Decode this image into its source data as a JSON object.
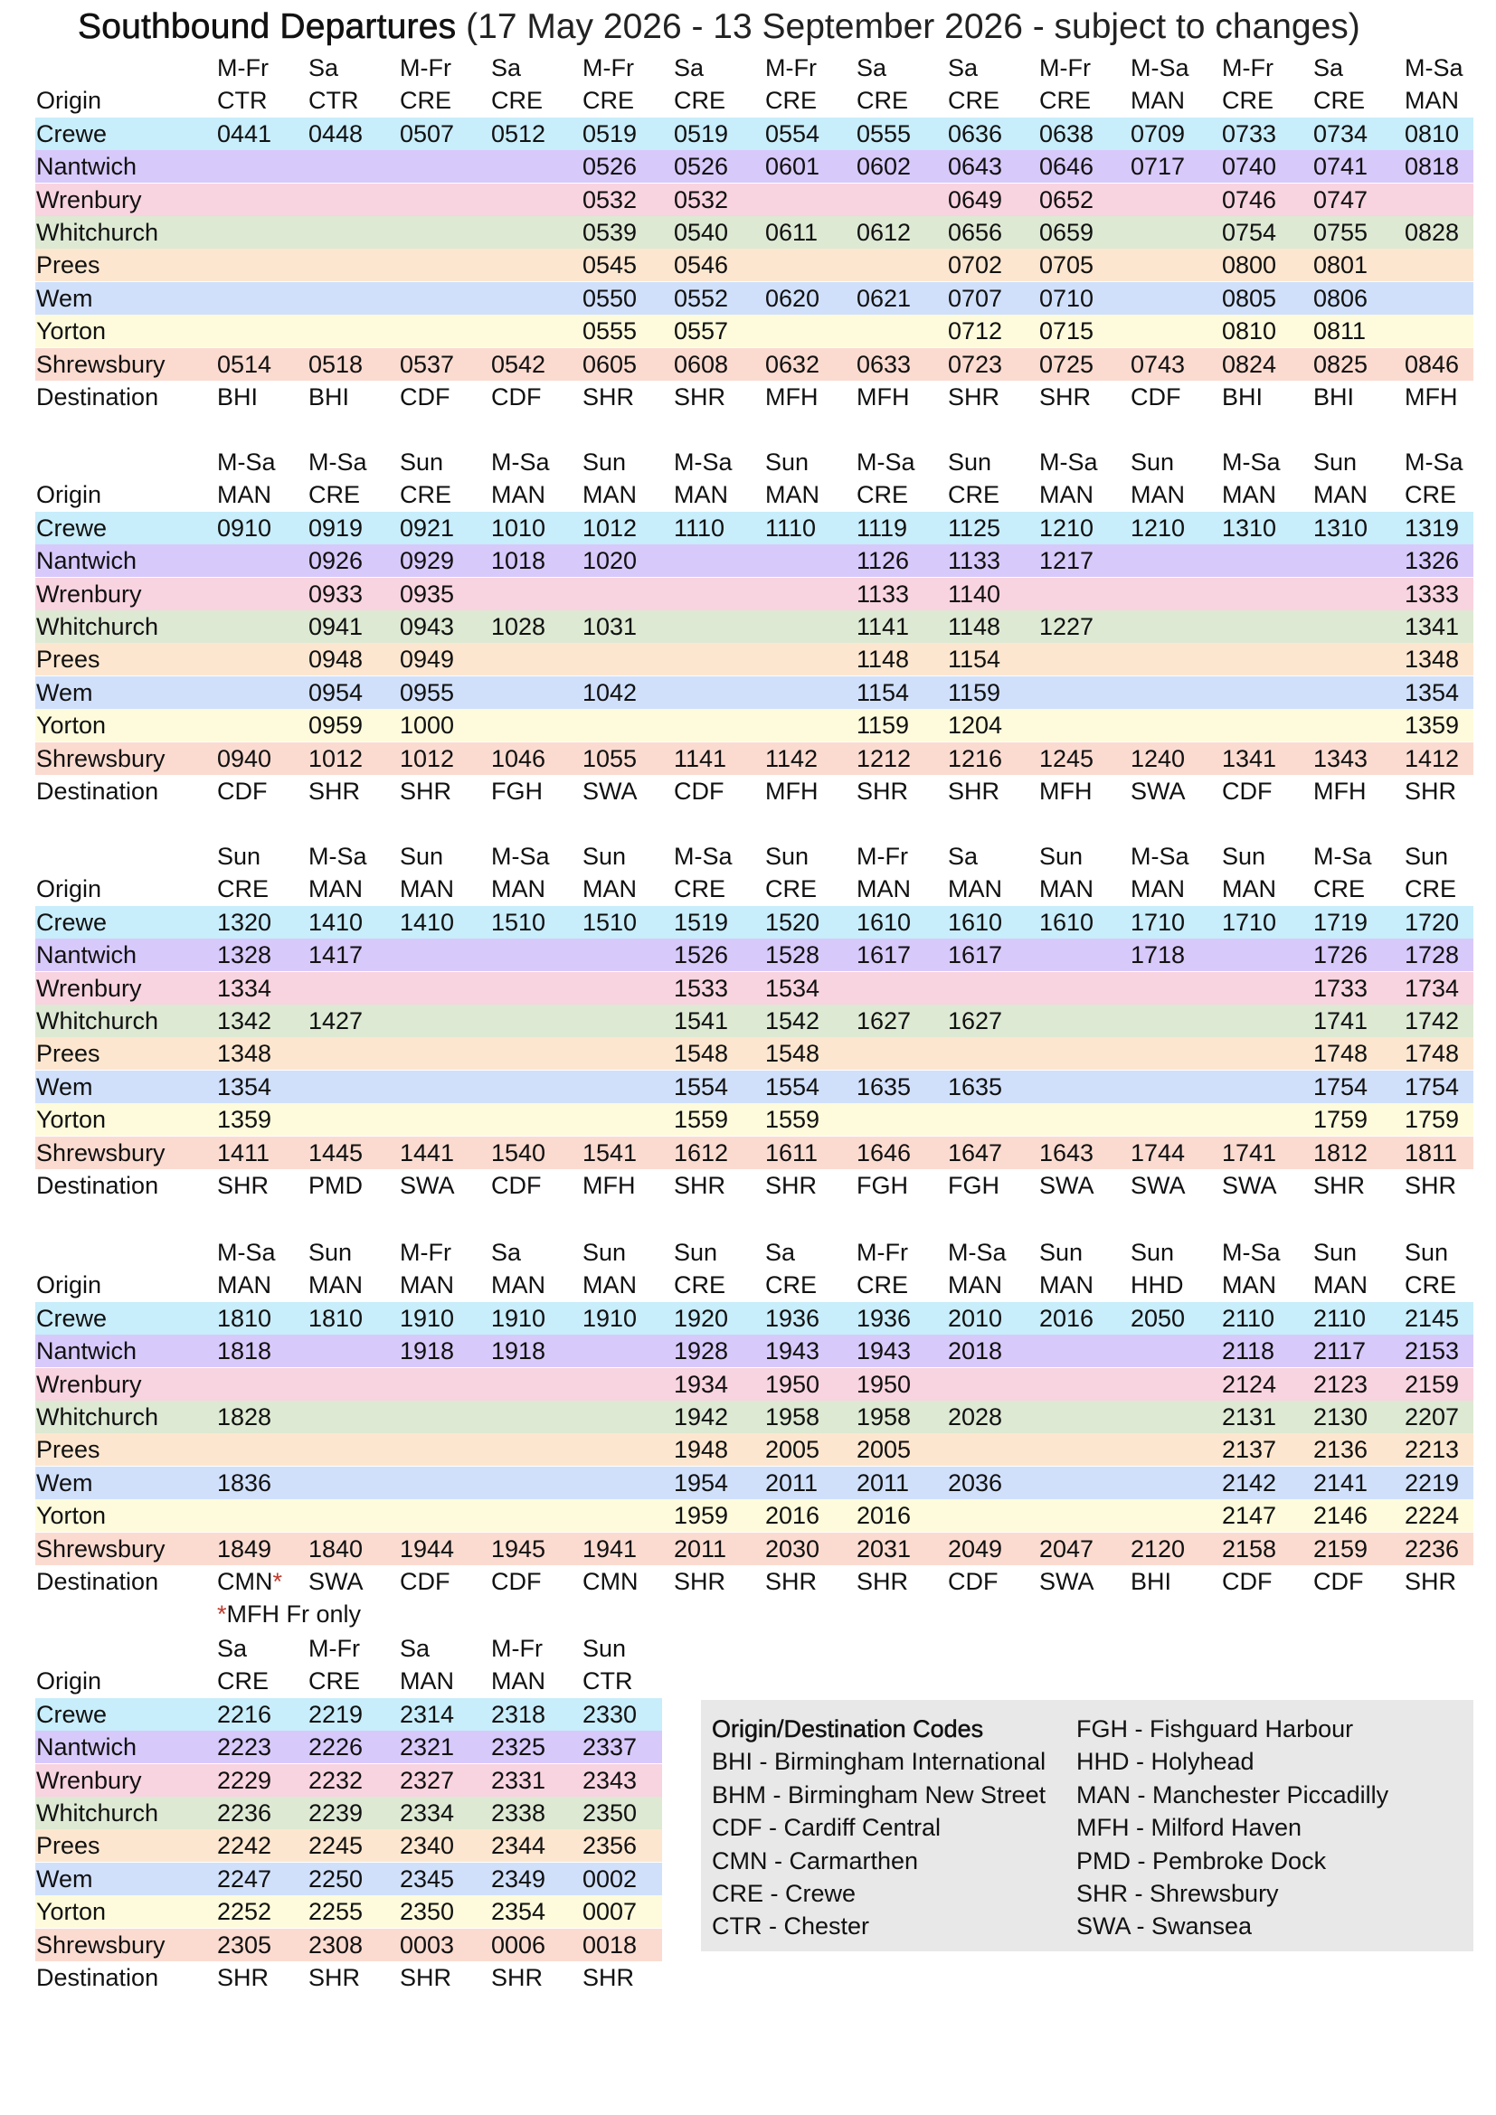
{
  "title": {
    "main": "Southbound Departures",
    "subtitle": "(17 May 2026 - 13 September 2026 - subject to changes)"
  },
  "labels": {
    "origin": "Origin",
    "destination": "Destination",
    "stations": [
      "Crewe",
      "Nantwich",
      "Wrenbury",
      "Whitchurch",
      "Prees",
      "Wem",
      "Yorton",
      "Shrewsbury"
    ]
  },
  "row_colors": [
    "#c8edfb",
    "#d8c9fb",
    "#f8d3e0",
    "#dde9d3",
    "#fde6cf",
    "#d0e0fb",
    "#fdfbdb",
    "#fbdbd0"
  ],
  "blocks": [
    {
      "days": [
        "M-Fr",
        "Sa",
        "M-Fr",
        "Sa",
        "M-Fr",
        "Sa",
        "M-Fr",
        "Sa",
        "Sa",
        "M-Fr",
        "M-Sa",
        "M-Fr",
        "Sa",
        "M-Sa"
      ],
      "origins": [
        "CTR",
        "CTR",
        "CRE",
        "CRE",
        "CRE",
        "CRE",
        "CRE",
        "CRE",
        "CRE",
        "CRE",
        "MAN",
        "CRE",
        "CRE",
        "MAN"
      ],
      "times": [
        [
          "0441",
          "0448",
          "0507",
          "0512",
          "0519",
          "0519",
          "0554",
          "0555",
          "0636",
          "0638",
          "0709",
          "0733",
          "0734",
          "0810"
        ],
        [
          "",
          "",
          "",
          "",
          "0526",
          "0526",
          "0601",
          "0602",
          "0643",
          "0646",
          "0717",
          "0740",
          "0741",
          "0818"
        ],
        [
          "",
          "",
          "",
          "",
          "0532",
          "0532",
          "",
          "",
          "0649",
          "0652",
          "",
          "0746",
          "0747",
          ""
        ],
        [
          "",
          "",
          "",
          "",
          "0539",
          "0540",
          "0611",
          "0612",
          "0656",
          "0659",
          "",
          "0754",
          "0755",
          "0828"
        ],
        [
          "",
          "",
          "",
          "",
          "0545",
          "0546",
          "",
          "",
          "0702",
          "0705",
          "",
          "0800",
          "0801",
          ""
        ],
        [
          "",
          "",
          "",
          "",
          "0550",
          "0552",
          "0620",
          "0621",
          "0707",
          "0710",
          "",
          "0805",
          "0806",
          ""
        ],
        [
          "",
          "",
          "",
          "",
          "0555",
          "0557",
          "",
          "",
          "0712",
          "0715",
          "",
          "0810",
          "0811",
          ""
        ],
        [
          "0514",
          "0518",
          "0537",
          "0542",
          "0605",
          "0608",
          "0632",
          "0633",
          "0723",
          "0725",
          "0743",
          "0824",
          "0825",
          "0846"
        ]
      ],
      "destinations": [
        "BHI",
        "BHI",
        "CDF",
        "CDF",
        "SHR",
        "SHR",
        "MFH",
        "MFH",
        "SHR",
        "SHR",
        "CDF",
        "BHI",
        "BHI",
        "MFH"
      ],
      "dest_markers": [
        "",
        "",
        "",
        "",
        "",
        "",
        "",
        "",
        "",
        "",
        "",
        "",
        "",
        ""
      ]
    },
    {
      "days": [
        "M-Sa",
        "M-Sa",
        "Sun",
        "M-Sa",
        "Sun",
        "M-Sa",
        "Sun",
        "M-Sa",
        "Sun",
        "M-Sa",
        "Sun",
        "M-Sa",
        "Sun",
        "M-Sa"
      ],
      "origins": [
        "MAN",
        "CRE",
        "CRE",
        "MAN",
        "MAN",
        "MAN",
        "MAN",
        "CRE",
        "CRE",
        "MAN",
        "MAN",
        "MAN",
        "MAN",
        "CRE"
      ],
      "times": [
        [
          "0910",
          "0919",
          "0921",
          "1010",
          "1012",
          "1110",
          "1110",
          "1119",
          "1125",
          "1210",
          "1210",
          "1310",
          "1310",
          "1319"
        ],
        [
          "",
          "0926",
          "0929",
          "1018",
          "1020",
          "",
          "",
          "1126",
          "1133",
          "1217",
          "",
          "",
          "",
          "1326"
        ],
        [
          "",
          "0933",
          "0935",
          "",
          "",
          "",
          "",
          "1133",
          "1140",
          "",
          "",
          "",
          "",
          "1333"
        ],
        [
          "",
          "0941",
          "0943",
          "1028",
          "1031",
          "",
          "",
          "1141",
          "1148",
          "1227",
          "",
          "",
          "",
          "1341"
        ],
        [
          "",
          "0948",
          "0949",
          "",
          "",
          "",
          "",
          "1148",
          "1154",
          "",
          "",
          "",
          "",
          "1348"
        ],
        [
          "",
          "0954",
          "0955",
          "",
          "1042",
          "",
          "",
          "1154",
          "1159",
          "",
          "",
          "",
          "",
          "1354"
        ],
        [
          "",
          "0959",
          "1000",
          "",
          "",
          "",
          "",
          "1159",
          "1204",
          "",
          "",
          "",
          "",
          "1359"
        ],
        [
          "0940",
          "1012",
          "1012",
          "1046",
          "1055",
          "1141",
          "1142",
          "1212",
          "1216",
          "1245",
          "1240",
          "1341",
          "1343",
          "1412"
        ]
      ],
      "destinations": [
        "CDF",
        "SHR",
        "SHR",
        "FGH",
        "SWA",
        "CDF",
        "MFH",
        "SHR",
        "SHR",
        "MFH",
        "SWA",
        "CDF",
        "MFH",
        "SHR"
      ],
      "dest_markers": [
        "",
        "",
        "",
        "",
        "",
        "",
        "",
        "",
        "",
        "",
        "",
        "",
        "",
        ""
      ]
    },
    {
      "days": [
        "Sun",
        "M-Sa",
        "Sun",
        "M-Sa",
        "Sun",
        "M-Sa",
        "Sun",
        "M-Fr",
        "Sa",
        "Sun",
        "M-Sa",
        "Sun",
        "M-Sa",
        "Sun"
      ],
      "origins": [
        "CRE",
        "MAN",
        "MAN",
        "MAN",
        "MAN",
        "CRE",
        "CRE",
        "MAN",
        "MAN",
        "MAN",
        "MAN",
        "MAN",
        "CRE",
        "CRE"
      ],
      "times": [
        [
          "1320",
          "1410",
          "1410",
          "1510",
          "1510",
          "1519",
          "1520",
          "1610",
          "1610",
          "1610",
          "1710",
          "1710",
          "1719",
          "1720"
        ],
        [
          "1328",
          "1417",
          "",
          "",
          "",
          "1526",
          "1528",
          "1617",
          "1617",
          "",
          "1718",
          "",
          "1726",
          "1728"
        ],
        [
          "1334",
          "",
          "",
          "",
          "",
          "1533",
          "1534",
          "",
          "",
          "",
          "",
          "",
          "1733",
          "1734"
        ],
        [
          "1342",
          "1427",
          "",
          "",
          "",
          "1541",
          "1542",
          "1627",
          "1627",
          "",
          "",
          "",
          "1741",
          "1742"
        ],
        [
          "1348",
          "",
          "",
          "",
          "",
          "1548",
          "1548",
          "",
          "",
          "",
          "",
          "",
          "1748",
          "1748"
        ],
        [
          "1354",
          "",
          "",
          "",
          "",
          "1554",
          "1554",
          "1635",
          "1635",
          "",
          "",
          "",
          "1754",
          "1754"
        ],
        [
          "1359",
          "",
          "",
          "",
          "",
          "1559",
          "1559",
          "",
          "",
          "",
          "",
          "",
          "1759",
          "1759"
        ],
        [
          "1411",
          "1445",
          "1441",
          "1540",
          "1541",
          "1612",
          "1611",
          "1646",
          "1647",
          "1643",
          "1744",
          "1741",
          "1812",
          "1811"
        ]
      ],
      "destinations": [
        "SHR",
        "PMD",
        "SWA",
        "CDF",
        "MFH",
        "SHR",
        "SHR",
        "FGH",
        "FGH",
        "SWA",
        "SWA",
        "SWA",
        "SHR",
        "SHR"
      ],
      "dest_markers": [
        "",
        "",
        "",
        "",
        "",
        "",
        "",
        "",
        "",
        "",
        "",
        "",
        "",
        ""
      ]
    },
    {
      "days": [
        "M-Sa",
        "Sun",
        "M-Fr",
        "Sa",
        "Sun",
        "Sun",
        "Sa",
        "M-Fr",
        "M-Sa",
        "Sun",
        "Sun",
        "M-Sa",
        "Sun",
        "Sun"
      ],
      "origins": [
        "MAN",
        "MAN",
        "MAN",
        "MAN",
        "MAN",
        "CRE",
        "CRE",
        "CRE",
        "MAN",
        "MAN",
        "HHD",
        "MAN",
        "MAN",
        "CRE"
      ],
      "times": [
        [
          "1810",
          "1810",
          "1910",
          "1910",
          "1910",
          "1920",
          "1936",
          "1936",
          "2010",
          "2016",
          "2050",
          "2110",
          "2110",
          "2145"
        ],
        [
          "1818",
          "",
          "1918",
          "1918",
          "",
          "1928",
          "1943",
          "1943",
          "2018",
          "",
          "",
          "2118",
          "2117",
          "2153"
        ],
        [
          "",
          "",
          "",
          "",
          "",
          "1934",
          "1950",
          "1950",
          "",
          "",
          "",
          "2124",
          "2123",
          "2159"
        ],
        [
          "1828",
          "",
          "",
          "",
          "",
          "1942",
          "1958",
          "1958",
          "2028",
          "",
          "",
          "2131",
          "2130",
          "2207"
        ],
        [
          "",
          "",
          "",
          "",
          "",
          "1948",
          "2005",
          "2005",
          "",
          "",
          "",
          "2137",
          "2136",
          "2213"
        ],
        [
          "1836",
          "",
          "",
          "",
          "",
          "1954",
          "2011",
          "2011",
          "2036",
          "",
          "",
          "2142",
          "2141",
          "2219"
        ],
        [
          "",
          "",
          "",
          "",
          "",
          "1959",
          "2016",
          "2016",
          "",
          "",
          "",
          "2147",
          "2146",
          "2224"
        ],
        [
          "1849",
          "1840",
          "1944",
          "1945",
          "1941",
          "2011",
          "2030",
          "2031",
          "2049",
          "2047",
          "2120",
          "2158",
          "2159",
          "2236"
        ]
      ],
      "destinations": [
        "CMN",
        "SWA",
        "CDF",
        "CDF",
        "CMN",
        "SHR",
        "SHR",
        "SHR",
        "CDF",
        "SWA",
        "BHI",
        "CDF",
        "CDF",
        "SHR"
      ],
      "dest_markers": [
        "*",
        "",
        "",
        "",
        "",
        "",
        "",
        "",
        "",
        "",
        "",
        "",
        "",
        ""
      ],
      "footnote": {
        "marker": "*",
        "text": "MFH Fr only"
      }
    },
    {
      "days": [
        "Sa",
        "M-Fr",
        "Sa",
        "M-Fr",
        "Sun"
      ],
      "origins": [
        "CRE",
        "CRE",
        "MAN",
        "MAN",
        "CTR"
      ],
      "times": [
        [
          "2216",
          "2219",
          "2314",
          "2318",
          "2330"
        ],
        [
          "2223",
          "2226",
          "2321",
          "2325",
          "2337"
        ],
        [
          "2229",
          "2232",
          "2327",
          "2331",
          "2343"
        ],
        [
          "2236",
          "2239",
          "2334",
          "2338",
          "2350"
        ],
        [
          "2242",
          "2245",
          "2340",
          "2344",
          "2356"
        ],
        [
          "2247",
          "2250",
          "2345",
          "2349",
          "0002"
        ],
        [
          "2252",
          "2255",
          "2350",
          "2354",
          "0007"
        ],
        [
          "2305",
          "2308",
          "0003",
          "0006",
          "0018"
        ]
      ],
      "destinations": [
        "SHR",
        "SHR",
        "SHR",
        "SHR",
        "SHR"
      ],
      "dest_markers": [
        "",
        "",
        "",
        "",
        ""
      ]
    }
  ],
  "legend": {
    "heading": "Origin/Destination Codes",
    "col1": [
      "BHI - Birmingham International",
      "BHM - Birmingham New Street",
      "CDF - Cardiff Central",
      "CMN - Carmarthen",
      "CRE - Crewe",
      "CTR - Chester"
    ],
    "col2": [
      "FGH - Fishguard Harbour",
      "HHD - Holyhead",
      "MAN - Manchester Piccadilly",
      "MFH - Milford Haven",
      "PMD - Pembroke Dock",
      "SHR - Shrewsbury",
      "SWA - Swansea"
    ]
  }
}
